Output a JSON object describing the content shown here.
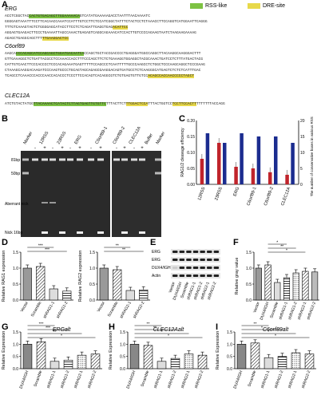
{
  "panel_letters": {
    "A": "A",
    "B": "B",
    "C": "C",
    "D": "D",
    "E": "E",
    "F": "F",
    "G": "G",
    "H": "H",
    "I": "I"
  },
  "legend": {
    "rss": "RSS-like",
    "dre": "DRE-site",
    "rss_color": "#7dc242",
    "dre_color": "#e8d94a"
  },
  "sequences": {
    "erg": {
      "title": "ERG",
      "l1a": "ACCTCGGCTAC",
      "l1g": "CACTGTGACAGCTTGGAAAAACA",
      "l1b": "GTCATATGAAAAAGACCTAATTTAACAAAATC",
      "l2": "GGGGAGTAAATTTCCTTCACAACCAAATCCATTTGTCCTTCTCCATCGGCTATTTCTACTCCTCTAAACCTTCCAGGTCATGGAATTCAGGG",
      "l3a": "TTTGTCAAAGTAGTCTGGGGAGCATACCTTCCTCTCAGATTGAGGTGAG",
      "l3y": "ACATTCC",
      "l4": "AGGAGTGAAGACTTCCCTGAAAATTAGCCAAACTGAGAGTCAGGCAGAAACATCCACTTGTCCCCAGAAGTAATCTAAGAAGAAAAG",
      "l5a": "AGAGCTGAGGCAGCTTT",
      "l5y": "TTGAAGGACTCC"
    },
    "c6": {
      "title": "C6orf89",
      "l1a": "AAGCA",
      "l1g": "CCCACAGCATCCAGCAGCTGGATGACAATCA",
      "l1b": "CCAGCTGCTACCGACCCCTGAGGGATGGCCAGGCTTACAAGGCAAGGGACTTT",
      "l2": "GTTGAAAGGCTCTGATTACGCCTCCAAACCACCTTTCCCAGCTTCTCTGAAAGGTGGAGGCTACGCAAACTGATCCTCTTTATGACTACG",
      "l3": "CATTGTCAACTTCCCACCCCTCCCACAGAAATGAGTTTTTCCAGCCCTCAATTTTTGCCCAAGCCTCTGGCTCCCAAGCAGGCTCCCGAAG",
      "l4": "CTAAAGCAAGGACAAGATCCCAAGTGCCCTGCAGTAGCAGAGCGAAGGACAGTGATGCCTCTCAAGGGCATGAGTCTCTCTCATTTGAC",
      "l5a": "TCAGCCTCAAACCCACCCAACCACACCCTCCCTTCCACAGTCACAGGCGTCTGTGAGTGTTGTCC",
      "l5y": "ACAGCCACCAACCCCCTAGCT"
    },
    "clec": {
      "title": "CLEC12A",
      "a": "ATCTGTACTATGG",
      "g": "TTACAAAACTCATACTCTTAGTGAGTTGTGTTC",
      "b": "TTTACTTCT",
      "y1": "TTGGACTCCA",
      "c": "TTTACTGGTCC",
      "y2": "TCCTTCCACTT",
      "d": "TTTTTTTACCAGG"
    }
  },
  "gel": {
    "lanes": [
      "Marker",
      "12RSS",
      "23RSS",
      "ERG",
      "C6orf89-1",
      "C6orf89-2",
      "CLEC12A",
      "Buffer",
      "Marker"
    ],
    "signs": [
      "-",
      "+",
      "-",
      "+",
      "-",
      "+",
      "-",
      "+",
      "-",
      "+",
      "-",
      "+"
    ],
    "labels": {
      "b1": "81bp",
      "b2": "50bp",
      "nick": "Aberrant nick",
      "nick16": "Nick 16bp"
    }
  },
  "c_chart": {
    "categories": [
      "12RSS",
      "23RSS",
      "ERG",
      "C6orf89-1",
      "C6orf89-2",
      "CLEC12A"
    ],
    "efficiency": [
      0.08,
      0.13,
      0.055,
      0.05,
      0.038,
      0.03
    ],
    "conserved": [
      16,
      13,
      16,
      15,
      15,
      13
    ],
    "ylabel_left": "RAG1/2 cleavage efficiency",
    "ylabel_right": "The number of conservative bases in various RSS sites",
    "left_ticks": [
      "0.00",
      "0.05",
      "0.10",
      "0.15",
      "0.20"
    ],
    "right_ticks": [
      "0",
      "5",
      "10",
      "15",
      "20"
    ]
  },
  "d_rag1": {
    "ylabel": "Relative RAG1 expression",
    "categories": [
      "Vector",
      "Scramble",
      "shRAG1-1",
      "shRAG1-2"
    ],
    "values": [
      1.0,
      1.05,
      0.35,
      0.28
    ],
    "sig": "***",
    "ticks": [
      "0.0",
      "0.5",
      "1.0",
      "1.5"
    ]
  },
  "d_rag2": {
    "ylabel": "Relative RAG2 expression",
    "categories": [
      "Vector",
      "Scramble",
      "shRAG2-1",
      "shRAG2-2"
    ],
    "values": [
      1.0,
      0.95,
      0.3,
      0.32
    ],
    "sig": "**",
    "ticks": [
      "0.0",
      "0.5",
      "1.0",
      "1.5"
    ]
  },
  "e_blot": {
    "rows": [
      "ERG",
      "ERG",
      "DUX4/IGH",
      "Actin"
    ],
    "cols": [
      "Vector",
      "DUX4/IGH",
      "Scramble",
      "shRAG1-1",
      "shRAG1-2",
      "shRAG2-1",
      "shRAG2-2"
    ]
  },
  "f_chart": {
    "ylabel": "Relative gray value",
    "categories": [
      "Vector",
      "DUX4/IGH",
      "Scramble",
      "shRAG1-1",
      "shRAG1-2",
      "shRAG2-1",
      "shRAG2-2"
    ],
    "values": [
      1.0,
      1.1,
      0.55,
      0.7,
      0.85,
      0.9,
      0.88
    ],
    "ticks": [
      "0.0",
      "0.5",
      "1.0",
      "1.5"
    ],
    "sig": [
      "*",
      "**",
      "*"
    ]
  },
  "g_chart": {
    "title": "ERGalt",
    "ylabel": "Relative Expression",
    "categories": [
      "DUX4/IGH",
      "Scramble",
      "shRAG1-1",
      "shRAG1-2",
      "shRAG2-1",
      "shRAG2-2"
    ],
    "values": [
      1.0,
      1.1,
      0.3,
      0.35,
      0.55,
      0.6
    ],
    "ticks": [
      "0.0",
      "0.5",
      "1.0",
      "1.5"
    ],
    "sig": [
      "***",
      "***",
      "**",
      "*"
    ]
  },
  "h_chart": {
    "title": "CLEC12Aalt",
    "ylabel": "Relative Expression",
    "categories": [
      "DUX4/IGH",
      "Scramble",
      "shRAG1-1",
      "shRAG1-2",
      "shRAG2-1",
      "shRAG2-2"
    ],
    "values": [
      1.0,
      0.95,
      0.3,
      0.42,
      0.6,
      0.55
    ],
    "ticks": [
      "0.0",
      "0.5",
      "1.0",
      "1.5"
    ],
    "sig": [
      "**",
      "**",
      "*",
      "*"
    ]
  },
  "i_chart": {
    "title": "C6orf89alt",
    "ylabel": "Relative Expression",
    "categories": [
      "DUX4/IGH",
      "Scramble",
      "shRAG1-1",
      "shRAG1-2",
      "shRAG2-1",
      "shRAG2-2"
    ],
    "values": [
      1.0,
      1.05,
      0.45,
      0.5,
      0.65,
      0.6
    ],
    "ticks": [
      "0.0",
      "0.5",
      "1.0",
      "1.5"
    ],
    "sig": [
      "**",
      "*",
      "*",
      "*"
    ]
  }
}
